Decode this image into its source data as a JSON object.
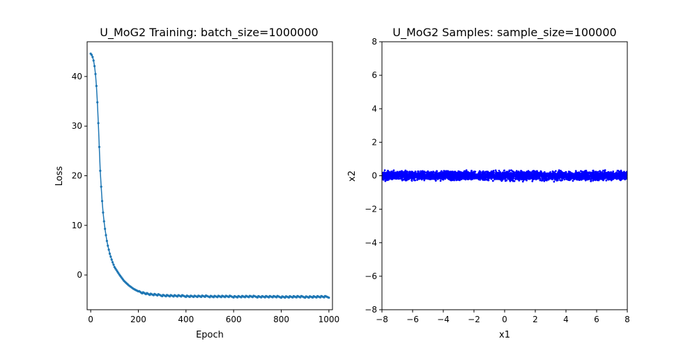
{
  "chart_data": [
    {
      "type": "line",
      "title": "U_MoG2 Training: batch_size=1000000",
      "xlabel": "Epoch",
      "ylabel": "Loss",
      "xlim": [
        -15,
        1015
      ],
      "ylim": [
        -7,
        47
      ],
      "xticks": [
        0,
        200,
        400,
        600,
        800,
        1000
      ],
      "yticks": [
        0,
        10,
        20,
        30,
        40
      ],
      "grid": false,
      "legend": "none",
      "marker": "dot",
      "color": "#1f77b4",
      "series": [
        {
          "x": [
            0,
            5,
            10,
            15,
            20,
            25,
            30,
            35,
            40,
            45,
            50,
            55,
            60,
            65,
            70,
            80,
            90,
            100,
            120,
            140,
            160,
            180,
            200,
            220,
            250,
            300,
            350,
            400,
            450,
            500,
            600,
            700,
            800,
            900,
            1000
          ],
          "y": [
            44.6,
            44.3,
            43.7,
            42.5,
            40.5,
            37.5,
            33.0,
            27.0,
            21.0,
            17.0,
            13.5,
            11.2,
            9.3,
            7.7,
            6.3,
            4.3,
            2.8,
            1.6,
            0.1,
            -1.2,
            -2.1,
            -2.8,
            -3.3,
            -3.6,
            -3.9,
            -4.1,
            -4.2,
            -4.25,
            -4.3,
            -4.3,
            -4.35,
            -4.35,
            -4.4,
            -4.4,
            -4.4
          ]
        }
      ]
    },
    {
      "type": "scatter",
      "title": "U_MoG2 Samples: sample_size=100000",
      "xlabel": "x1",
      "ylabel": "x2",
      "xlim": [
        -8,
        8
      ],
      "ylim": [
        -8,
        8
      ],
      "xticks": [
        -8,
        -6,
        -4,
        -2,
        0,
        2,
        4,
        6,
        8
      ],
      "yticks": [
        -8,
        -6,
        -4,
        -2,
        0,
        2,
        4,
        6,
        8
      ],
      "grid": false,
      "legend": "none",
      "color": "#0000ff",
      "samples": {
        "x_range": [
          -8,
          8
        ],
        "y_center": 0,
        "y_spread": 0.25
      }
    }
  ]
}
